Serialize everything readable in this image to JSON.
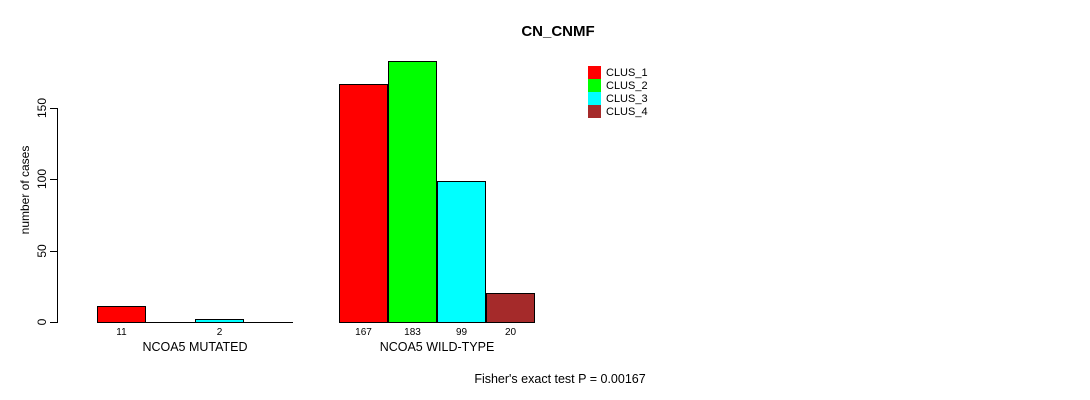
{
  "chart_data": {
    "type": "bar",
    "title": "CN_CNMF",
    "categories": [
      "NCOA5 MUTATED",
      "NCOA5 WILD-TYPE"
    ],
    "series": [
      {
        "name": "CLUS_1",
        "color": "#ff0000",
        "values": [
          11,
          167
        ]
      },
      {
        "name": "CLUS_2",
        "color": "#00ff00",
        "values": [
          0,
          183
        ]
      },
      {
        "name": "CLUS_3",
        "color": "#00ffff",
        "values": [
          2,
          99
        ]
      },
      {
        "name": "CLUS_4",
        "color": "#a52a2a",
        "values": [
          0,
          20
        ]
      }
    ],
    "value_labels": [
      [
        "11",
        "",
        "2",
        ""
      ],
      [
        "167",
        "183",
        "99",
        "20"
      ]
    ],
    "xlabel": "",
    "ylabel": "number of cases",
    "yticks": [
      0,
      50,
      100,
      150
    ],
    "ylim": [
      0,
      190
    ],
    "grid": false,
    "legend_position": "top-right",
    "legend_entries": [
      "CLUS_1",
      "CLUS_2",
      "CLUS_3",
      "CLUS_4"
    ],
    "annotation": "Fisher's exact test P = 0.00167",
    "axis_color": "#000000",
    "background_color": "#ffffff"
  }
}
